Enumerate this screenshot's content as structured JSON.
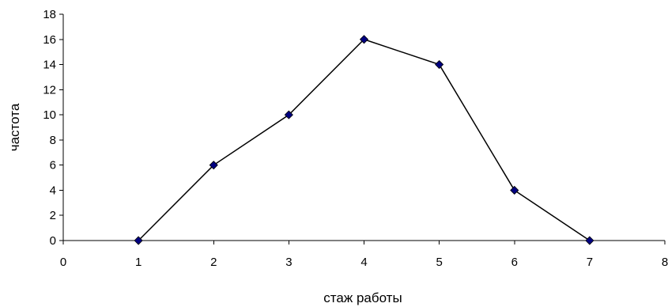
{
  "chart_data": {
    "type": "line",
    "title": "",
    "xlabel": "стаж работы",
    "ylabel": "частота",
    "xlim": [
      0,
      8
    ],
    "ylim": [
      0,
      18
    ],
    "x_ticks": [
      0,
      1,
      2,
      3,
      4,
      5,
      6,
      7,
      8
    ],
    "y_ticks": [
      0,
      2,
      4,
      6,
      8,
      10,
      12,
      14,
      16,
      18
    ],
    "grid": false,
    "legend": "none",
    "series": [
      {
        "x": [
          1,
          2,
          3,
          4,
          5,
          6,
          7
        ],
        "y": [
          0,
          6,
          10,
          16,
          14,
          4,
          0
        ],
        "line_color": "#000000",
        "marker": "diamond",
        "marker_color": "#000080"
      }
    ]
  }
}
